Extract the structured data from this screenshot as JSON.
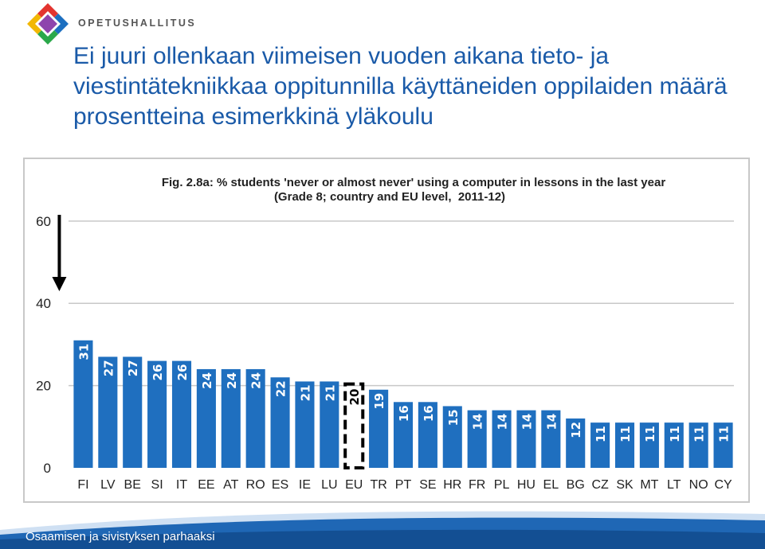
{
  "header": {
    "brand": "OPETUSHALLITUS",
    "title": "Ei juuri ollenkaan viimeisen vuoden aikana tieto- ja viestintätekniikkaa oppitunnilla käyttäneiden oppilaiden määrä prosentteina esimerkkinä yläkoulu"
  },
  "chart_data": {
    "type": "bar",
    "title": "Fig. 2.8a: % students 'never or almost never' using a computer in lessons in the last year",
    "subtitle": "(Grade 8; country and EU level,  2011-12)",
    "categories": [
      "FI",
      "LV",
      "BE",
      "SI",
      "IT",
      "EE",
      "AT",
      "RO",
      "ES",
      "IE",
      "LU",
      "EU",
      "TR",
      "PT",
      "SE",
      "HR",
      "FR",
      "PL",
      "HU",
      "EL",
      "BG",
      "CZ",
      "SK",
      "MT",
      "LT",
      "NO",
      "CY"
    ],
    "values": [
      31,
      27,
      27,
      26,
      26,
      24,
      24,
      24,
      22,
      21,
      21,
      20,
      19,
      16,
      16,
      15,
      14,
      14,
      14,
      14,
      12,
      11,
      11,
      11,
      11,
      11,
      11
    ],
    "yticks": [
      0,
      20,
      40,
      60
    ],
    "ylim": [
      0,
      65
    ],
    "grid": true,
    "legend": "none",
    "highlight_category": "EU",
    "arrow_category": "FI",
    "bar_color": "#1f6fbf"
  },
  "footer": {
    "text": "Osaamisen ja sivistyksen parhaaksi"
  }
}
